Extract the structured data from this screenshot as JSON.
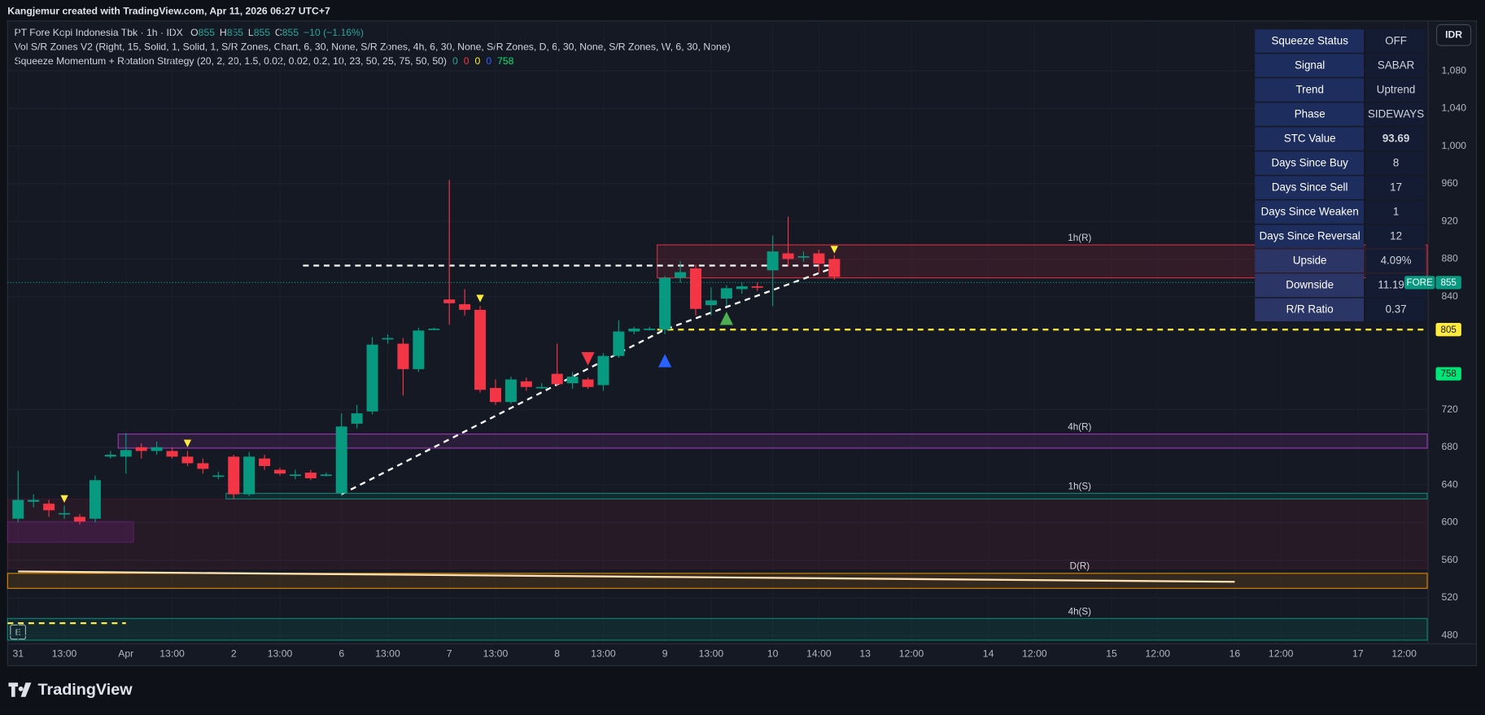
{
  "header": {
    "credit": "Kangjemur created with TradingView.com, Apr 11, 2026 06:27 UTC+7",
    "symbol": "PT Fore Kopi Indonesia Tbk · 1h · IDX",
    "quote": [
      {
        "key": "O",
        "value": "855"
      },
      {
        "key": "H",
        "value": "855"
      },
      {
        "key": "L",
        "value": "855"
      },
      {
        "key": "C",
        "value": "855"
      }
    ],
    "change": "−10 (−1.16%)",
    "indicator": "Vol S/R Zones V2 (Right, 15, Solid, 1, Solid, 1, S/R Zones, Chart, 6, 30, None, S/R Zones, 4h, 6, 30, None, S/R Zones, D, 6, 30, None, S/R Zones, W, 6, 30, None)",
    "strategy": "Squeeze Momentum + Rotation Strategy (20, 2, 20, 1.5, 0.02, 0.02, 0.2, 10, 23, 50, 25, 75, 50, 50)",
    "strategy_values": [
      {
        "text": "0",
        "color": "#26a69a"
      },
      {
        "text": "0",
        "color": "#f23645"
      },
      {
        "text": "0",
        "color": "#ffeb3b"
      },
      {
        "text": "0",
        "color": "#2962ff"
      },
      {
        "text": "758",
        "color": "#00e676"
      }
    ],
    "currency": "IDR"
  },
  "table": {
    "rows": [
      [
        "Squeeze Status",
        "OFF"
      ],
      [
        "Signal",
        "SABAR"
      ],
      [
        "Trend",
        "Uptrend"
      ],
      [
        "Phase",
        "SIDEWAYS"
      ],
      [
        "STC Value",
        "93.69"
      ],
      [
        "Days Since Buy",
        "8"
      ],
      [
        "Days Since Sell",
        "17"
      ],
      [
        "Days Since Weaken",
        "1"
      ],
      [
        "Days Since Reversal",
        "12"
      ],
      [
        "Upside",
        "4.09%"
      ],
      [
        "Downside",
        "11.19%"
      ],
      [
        "R/R Ratio",
        "0.37"
      ]
    ],
    "colors": [
      "#ffffff",
      "#f7c948",
      "#26c281",
      "#ff9800",
      "#ffffff",
      "#4caf50",
      "#f23645",
      "#ffeb3b",
      "#2f7bff",
      "#26c281",
      "#f23645",
      "#26c6da"
    ]
  },
  "chart_data": {
    "type": "candlestick",
    "categories": [
      "31",
      null,
      null,
      "13:00",
      null,
      null,
      null,
      "Apr",
      null,
      null,
      "13:00",
      null,
      null,
      null,
      "2",
      null,
      null,
      "13:00",
      null,
      null,
      null,
      "6",
      null,
      null,
      "13:00",
      null,
      null,
      null,
      "7",
      null,
      null,
      "13:00",
      null,
      null,
      null,
      "8",
      null,
      null,
      "13:00",
      null,
      null,
      null,
      "9",
      null,
      null,
      "13:00",
      null,
      null,
      null,
      "10",
      null,
      null,
      "14:00",
      null,
      null,
      "13",
      null,
      null,
      "12:00",
      null,
      null,
      null,
      null,
      "14",
      null,
      null,
      "12:00",
      null,
      null,
      null,
      null,
      "15",
      null,
      null,
      "12:00",
      null,
      null,
      null,
      null,
      "16",
      null,
      null,
      "12:00",
      null,
      null,
      null,
      null,
      "17",
      null,
      null,
      "12:00",
      null
    ],
    "open": [
      604,
      622,
      620,
      610,
      606,
      604,
      670,
      670,
      680,
      676,
      676,
      670,
      663,
      650,
      670,
      630,
      668,
      656,
      650,
      653,
      651,
      631,
      705,
      718,
      795,
      790,
      763,
      806,
      837,
      832,
      826,
      743,
      728,
      750,
      744,
      758,
      748,
      752,
      746,
      777,
      803,
      806,
      805,
      860,
      870,
      831,
      838,
      848,
      851,
      868,
      886,
      883,
      886,
      880,
      null,
      null,
      null,
      null,
      null,
      null,
      null,
      null,
      null,
      null,
      null,
      null,
      null,
      null,
      null,
      null,
      null,
      null,
      null,
      null,
      null,
      null,
      null,
      null,
      null,
      null,
      null,
      null,
      null,
      null,
      null,
      null,
      null,
      null,
      null,
      null,
      null,
      null
    ],
    "high": [
      655,
      630,
      624,
      618,
      609,
      650,
      676,
      695,
      684,
      686,
      680,
      676,
      668,
      654,
      672,
      675,
      672,
      658,
      656,
      656,
      653,
      716,
      725,
      797,
      800,
      796,
      807,
      807,
      964,
      848,
      830,
      752,
      755,
      754,
      748,
      790,
      760,
      754,
      780,
      815,
      808,
      808,
      862,
      878,
      874,
      850,
      852,
      855,
      855,
      905,
      925,
      888,
      890,
      884,
      null,
      null,
      null,
      null,
      null,
      null,
      null,
      null,
      null,
      null,
      null,
      null,
      null,
      null,
      null,
      null,
      null,
      null,
      null,
      null,
      null,
      null,
      null,
      null,
      null,
      null,
      null,
      null,
      null,
      null,
      null,
      null,
      null,
      null,
      null,
      null,
      null,
      null
    ],
    "low": [
      600,
      616,
      606,
      604,
      598,
      600,
      668,
      652,
      668,
      672,
      668,
      660,
      652,
      646,
      625,
      628,
      656,
      650,
      646,
      645,
      649,
      628,
      700,
      715,
      790,
      735,
      760,
      805,
      810,
      820,
      738,
      725,
      726,
      740,
      742,
      745,
      742,
      742,
      740,
      775,
      800,
      804,
      800,
      855,
      820,
      820,
      830,
      843,
      846,
      830,
      872,
      877,
      865,
      858,
      null,
      null,
      null,
      null,
      null,
      null,
      null,
      null,
      null,
      null,
      null,
      null,
      null,
      null,
      null,
      null,
      null,
      null,
      null,
      null,
      null,
      null,
      null,
      null,
      null,
      null,
      null,
      null,
      null,
      null,
      null,
      null,
      null,
      null,
      null,
      null,
      null,
      null
    ],
    "close": [
      624,
      624,
      613,
      610,
      601,
      645,
      672,
      677,
      676,
      680,
      670,
      663,
      657,
      650,
      630,
      670,
      660,
      652,
      651,
      647,
      651,
      702,
      716,
      789,
      796,
      763,
      804,
      806,
      833,
      826,
      741,
      728,
      752,
      744,
      744,
      747,
      755,
      744,
      777,
      803,
      806,
      806,
      860,
      866,
      827,
      836,
      849,
      851,
      850,
      888,
      880,
      883,
      875,
      861,
      null,
      null,
      null,
      null,
      null,
      null,
      null,
      null,
      null,
      null,
      null,
      null,
      null,
      null,
      null,
      null,
      null,
      null,
      null,
      null,
      null,
      null,
      null,
      null,
      null,
      null,
      null,
      null,
      null,
      null,
      null,
      null,
      null,
      null,
      null,
      null,
      null,
      null
    ],
    "up_color": "#089981",
    "down_color": "#f23645",
    "ylim": [
      471,
      1133
    ],
    "yticks": [
      480,
      520,
      560,
      600,
      640,
      680,
      720,
      840,
      880,
      920,
      960,
      {
        "value": 1000,
        "label": "1,000"
      },
      {
        "value": 1040,
        "label": "1,040"
      },
      {
        "value": 1080,
        "label": "1,080"
      }
    ],
    "zones": [
      {
        "top": 625,
        "bottom": 551,
        "from": 0,
        "color": "#7a1f35"
      },
      {
        "top": 601,
        "bottom": 579,
        "from": 0,
        "to": 7,
        "color": "#9c27b0"
      },
      {
        "label": "1h(R)",
        "top": 895,
        "bottom": 860,
        "from": 42,
        "color": "#f23645"
      },
      {
        "label": "4h(R)",
        "top": 694,
        "bottom": 679,
        "from": 7,
        "color": "#b03fc8"
      },
      {
        "label": "1h(S)",
        "top": 631,
        "bottom": 625,
        "from": 14,
        "color": "#089981"
      },
      {
        "label": "D(R)",
        "top": 546,
        "bottom": 530,
        "from": 0,
        "color": "#ff9800"
      },
      {
        "label": "4h(S)",
        "top": 498,
        "bottom": 475,
        "from": 0,
        "color": "#089981"
      }
    ],
    "levels": [
      {
        "value": 873,
        "from": 19,
        "to": 53,
        "color": "#ffffff"
      },
      {
        "value": 805,
        "from": 42,
        "color": "#ffeb3b"
      },
      {
        "value": 493,
        "from": 0,
        "to": 7,
        "color": "#ffeb3b"
      }
    ],
    "trendline": {
      "x": [
        21,
        42,
        53
      ],
      "y": [
        630,
        805,
        871
      ],
      "color": "#ffffff"
    },
    "baseline": {
      "x": [
        0,
        79
      ],
      "y": [
        548,
        537
      ],
      "color": "#ffe0b2"
    },
    "markers": [
      {
        "x": 3,
        "y": 625,
        "shape": "down",
        "color": "#ffeb3b"
      },
      {
        "x": 11,
        "y": 684,
        "shape": "down",
        "color": "#ffeb3b"
      },
      {
        "x": 30,
        "y": 838,
        "shape": "down",
        "color": "#ffeb3b"
      },
      {
        "x": 53,
        "y": 890,
        "shape": "down",
        "color": "#ffeb3b"
      },
      {
        "x": 37,
        "y": 774,
        "shape": "down",
        "color": "#f23645",
        "size": "large"
      },
      {
        "x": 42,
        "y": 772,
        "shape": "up",
        "color": "#2962ff",
        "size": "large"
      },
      {
        "x": 46,
        "y": 817,
        "shape": "up",
        "color": "#4caf50",
        "size": "large"
      }
    ],
    "badges": [
      {
        "value": 855,
        "tag": "FORE",
        "color": "#089981"
      },
      {
        "value": 805,
        "color": "#ffeb3b"
      },
      {
        "value": 758,
        "color": "#00e676"
      }
    ]
  },
  "footer": {
    "brand": "TradingView",
    "button": "E"
  }
}
